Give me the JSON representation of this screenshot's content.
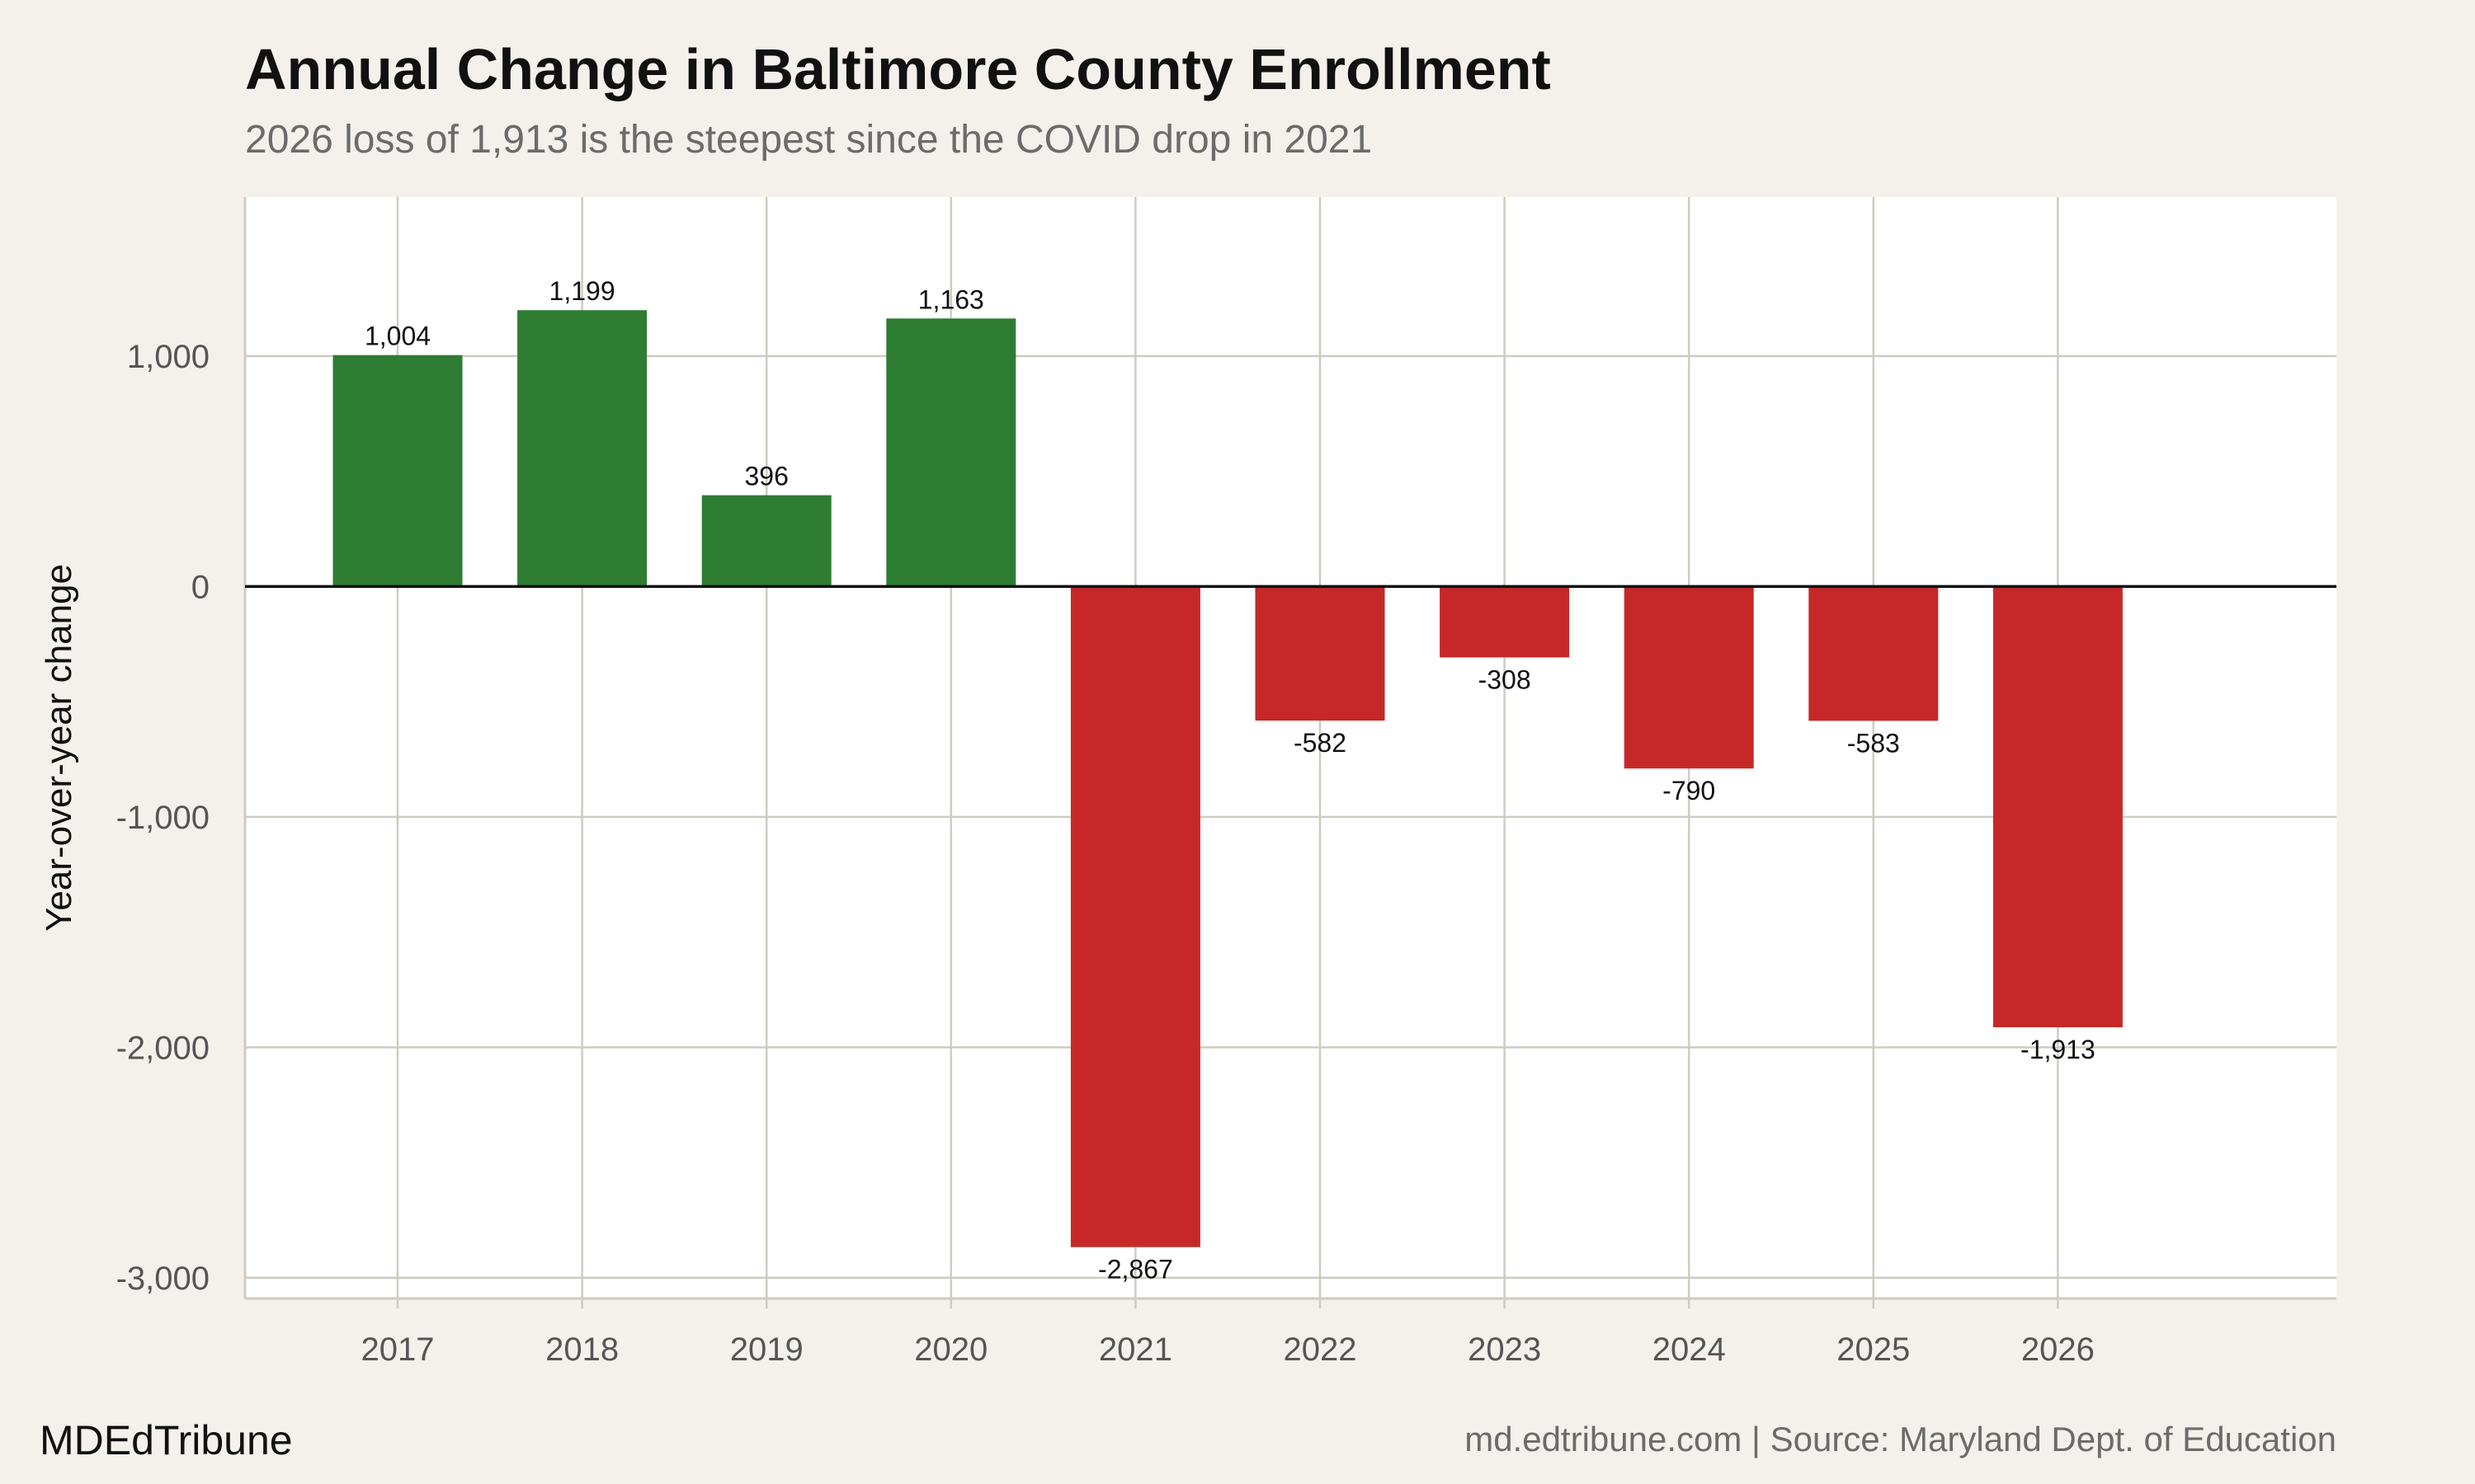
{
  "chart_data": {
    "type": "bar",
    "title": "Annual Change in Baltimore County Enrollment",
    "subtitle": "2026 loss of 1,913 is the steepest since the COVID drop in 2021",
    "xlabel": "",
    "ylabel": "Year-over-year change",
    "categories": [
      "2017",
      "2018",
      "2019",
      "2020",
      "2021",
      "2022",
      "2023",
      "2024",
      "2025",
      "2026"
    ],
    "values": [
      1004,
      1199,
      396,
      1163,
      -2867,
      -582,
      -308,
      -790,
      -583,
      -1913
    ],
    "data_labels": [
      "1,004",
      "1,199",
      "396",
      "1,163",
      "-2,867",
      "-582",
      "-308",
      "-790",
      "-583",
      "-1,913"
    ],
    "yticks": [
      1000,
      0,
      -1000,
      -2000,
      -3000
    ],
    "ytick_labels": [
      "1,000",
      "0",
      "-1,000",
      "-2,000",
      "-3,000"
    ],
    "ylim": [
      -3090,
      1690
    ],
    "grid": true,
    "colors": {
      "positive": "#2e7d32",
      "negative": "#c62828",
      "background": "#f4f1ec",
      "panel": "#ffffff",
      "grid": "#cfcbc2"
    }
  },
  "footer": {
    "brand": "MDEdTribune",
    "source": "md.edtribune.com | Source: Maryland Dept. of Education"
  }
}
